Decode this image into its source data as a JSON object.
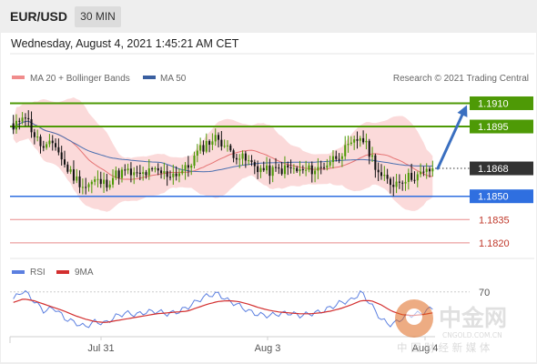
{
  "header": {
    "symbol": "EUR/USD",
    "timeframe": "30 MIN",
    "datetime": "Wednesday, August 4, 2021 1:45:21 AM CET"
  },
  "legend": {
    "items": [
      {
        "label": "MA 20 + Bollinger Bands",
        "color": "#f08c8c"
      },
      {
        "label": "MA 50",
        "color": "#3a5fa0"
      }
    ],
    "source": "Research © 2021 Trading Central"
  },
  "colors": {
    "resistance": "#4e9a06",
    "support": "#2f6fe0",
    "target": "#e88a8a",
    "bull_candle": "#4e9a06",
    "bear_candle": "#111111",
    "current": "#333333",
    "bollinger": "#fbdada",
    "ma20": "#e57373",
    "ma50": "#4a6fb0",
    "arrow": "#3a6fc0",
    "rsi": "#5b7fe0",
    "rsi_ma": "#d32f2f"
  },
  "chart_data": [
    {
      "type": "candlestick",
      "y_range": [
        1.18105,
        1.19185
      ],
      "levels": [
        {
          "value": 1.191,
          "label": "1.1910",
          "kind": "resistance"
        },
        {
          "value": 1.1895,
          "label": "1.1895",
          "kind": "resistance"
        },
        {
          "value": 1.1868,
          "label": "1.1868",
          "kind": "current"
        },
        {
          "value": 1.185,
          "label": "1.1850",
          "kind": "support"
        },
        {
          "value": 1.1835,
          "label": "1.1835",
          "kind": "target"
        },
        {
          "value": 1.182,
          "label": "1.1820",
          "kind": "target"
        }
      ],
      "x_labels": [
        "Jul 31",
        "Aug 3",
        "Aug 4"
      ],
      "series": [
        {
          "name": "MA 20 + Bollinger Bands"
        },
        {
          "name": "MA 50"
        }
      ],
      "close_path": [
        1.1892,
        1.1905,
        1.189,
        1.188,
        1.1885,
        1.187,
        1.1862,
        1.1856,
        1.186,
        1.1858,
        1.1864,
        1.1866,
        1.1863,
        1.1865,
        1.1866,
        1.1864,
        1.1865,
        1.1868,
        1.1878,
        1.1885,
        1.1888,
        1.188,
        1.1876,
        1.1872,
        1.1868,
        1.1866,
        1.1867,
        1.1868,
        1.1866,
        1.1867,
        1.1868,
        1.1873,
        1.1878,
        1.1882,
        1.1889,
        1.1876,
        1.1862,
        1.1858,
        1.1861,
        1.1863,
        1.1864,
        1.1868
      ],
      "forecast_arrow": {
        "from": 1.1868,
        "to": 1.191
      }
    },
    {
      "type": "line",
      "indicator": "RSI",
      "series": [
        {
          "name": "RSI"
        },
        {
          "name": "9MA"
        }
      ],
      "levels": [
        70
      ],
      "y_range": [
        25,
        75
      ],
      "rsi": [
        62,
        72,
        60,
        48,
        52,
        40,
        35,
        30,
        36,
        34,
        42,
        46,
        44,
        47,
        48,
        45,
        47,
        52,
        60,
        66,
        68,
        60,
        55,
        48,
        44,
        43,
        45,
        46,
        43,
        45,
        47,
        52,
        58,
        60,
        70,
        55,
        38,
        32,
        40,
        44,
        46,
        52
      ],
      "ma9": [
        58,
        62,
        60,
        56,
        52,
        48,
        43,
        39,
        36,
        35,
        37,
        39,
        41,
        43,
        45,
        46,
        47,
        48,
        52,
        56,
        59,
        60,
        59,
        56,
        52,
        49,
        47,
        46,
        45,
        45,
        46,
        48,
        51,
        55,
        60,
        60,
        55,
        48,
        44,
        43,
        44,
        46
      ]
    }
  ],
  "watermark": {
    "title": "中金网",
    "domain": "CNGOLD.COM.CN",
    "tagline": "中 国 财 经 新 媒 体"
  }
}
